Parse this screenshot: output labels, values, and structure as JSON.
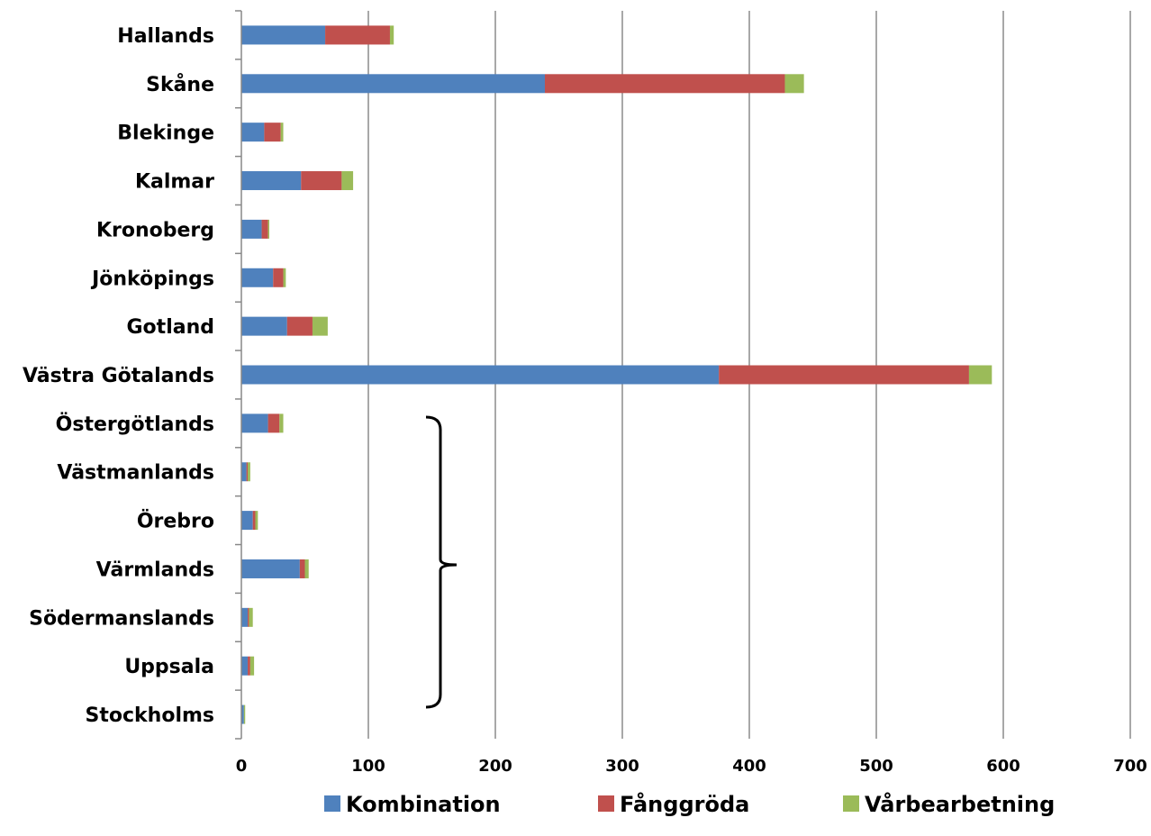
{
  "chart_data": {
    "type": "bar",
    "orientation": "horizontal",
    "stacked": true,
    "categories": [
      "Hallands",
      "Skåne",
      "Blekinge",
      "Kalmar",
      "Kronoberg",
      "Jönköpings",
      "Gotland",
      "Västra Götalands",
      "Östergötlands",
      "Västmanlands",
      "Örebro",
      "Värmlands",
      "Södermanslands",
      "Uppsala",
      "Stockholms"
    ],
    "series": [
      {
        "name": "Kombination",
        "color": "#4f81bd",
        "values": [
          66,
          239,
          18,
          47,
          16,
          25,
          36,
          376,
          21,
          4,
          9,
          46,
          5,
          5,
          2
        ]
      },
      {
        "name": "Fånggröda",
        "color": "#c0504d",
        "values": [
          51,
          189,
          13,
          32,
          5,
          8,
          20,
          197,
          9,
          1,
          2,
          4,
          1,
          2,
          0
        ]
      },
      {
        "name": "Vårbearbetning",
        "color": "#9bbb59",
        "values": [
          3,
          15,
          2,
          9,
          1,
          2,
          12,
          18,
          3,
          2,
          2,
          3,
          3,
          3,
          1
        ]
      }
    ],
    "xticks": [
      "0",
      "100",
      "200",
      "300",
      "400",
      "500",
      "600",
      "700"
    ],
    "xlim": [
      0,
      700
    ],
    "grid": "vertical",
    "legend_position": "bottom",
    "annotation": "brace spanning Östergötlands to Stockholms"
  }
}
